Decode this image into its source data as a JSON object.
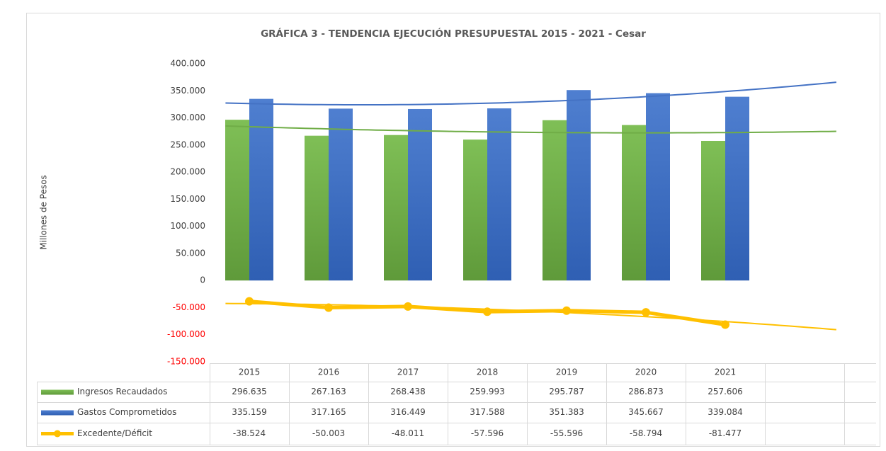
{
  "chart_data": {
    "type": "bar",
    "title": "GRÁFICA 3  - TENDENCIA EJECUCIÓN PRESUPUESTAL 2015 - 2021 - Cesar",
    "y_label": "Millones de Pesos",
    "categories": [
      "2015",
      "2016",
      "2017",
      "2018",
      "2019",
      "2020",
      "2021",
      null
    ],
    "series": [
      {
        "name": "Ingresos Recaudados",
        "type": "bar",
        "color": "#70ad47",
        "values": [
          296635,
          267163,
          268438,
          259993,
          295787,
          286873,
          257606,
          null
        ],
        "value_labels": [
          "296.635",
          "267.163",
          "268.438",
          "259.993",
          "295.787",
          "286.873",
          "257.606",
          null
        ]
      },
      {
        "name": "Gastos Comprometidos",
        "type": "bar",
        "color": "#4472c4",
        "values": [
          335159,
          317165,
          316449,
          317588,
          351383,
          345667,
          339084,
          null
        ],
        "value_labels": [
          "335.159",
          "317.165",
          "316.449",
          "317.588",
          "351.383",
          "345.667",
          "339.084",
          null
        ]
      },
      {
        "name": "Excedente/Déficit",
        "type": "line",
        "color": "#ffc000",
        "values": [
          -38524,
          -50003,
          -48011,
          -57596,
          -55596,
          -58794,
          -81477,
          null
        ],
        "value_labels": [
          "-38.524",
          "-50.003",
          "-48.011",
          "-57.596",
          "-55.596",
          "-58.794",
          "-81.477",
          null
        ]
      }
    ],
    "ylim": [
      -150000,
      400000
    ],
    "yticks": [
      {
        "value": -150000,
        "label": "-150.000"
      },
      {
        "value": -100000,
        "label": "-100.000"
      },
      {
        "value": -50000,
        "label": "-50.000"
      },
      0,
      {
        "value": 50000,
        "label": "50.000"
      },
      {
        "value": 100000,
        "label": "100.000"
      },
      {
        "value": 150000,
        "label": "150.000"
      },
      {
        "value": 200000,
        "label": "200.000"
      },
      {
        "value": 250000,
        "label": "250.000"
      },
      {
        "value": 300000,
        "label": "300.000"
      },
      {
        "value": 350000,
        "label": "350.000"
      },
      {
        "value": 400000,
        "label": "400.000"
      }
    ],
    "negative_tick_color": "#ff0000",
    "trendlines": true,
    "data_table": true
  }
}
